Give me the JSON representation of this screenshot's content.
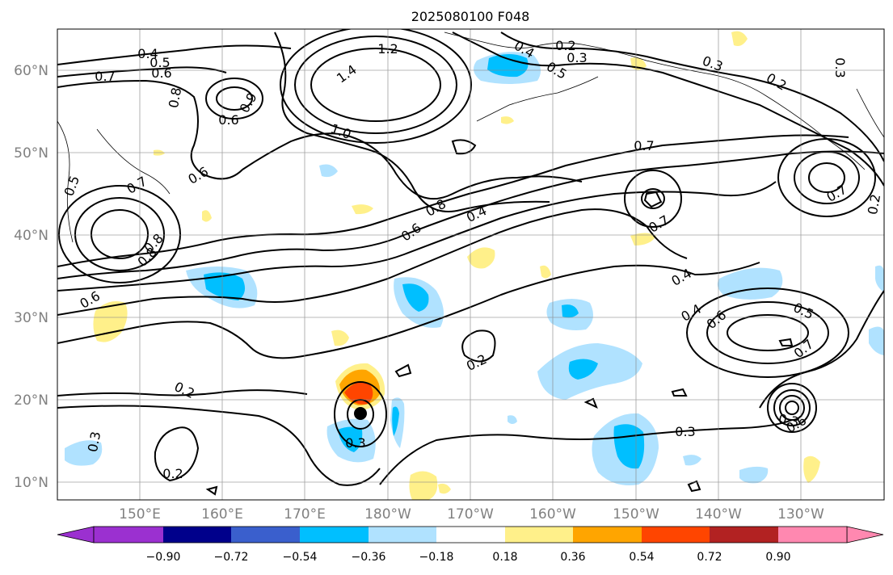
{
  "title": "2025080100 F048",
  "axes": {
    "lat_ticks": [
      "60°N",
      "50°N",
      "40°N",
      "30°N",
      "20°N",
      "10°N"
    ],
    "lon_ticks": [
      "150°E",
      "160°E",
      "170°E",
      "180°W",
      "170°W",
      "160°W",
      "150°W",
      "140°W",
      "130°W"
    ]
  },
  "colorbar": {
    "colors": [
      "#9b30d0",
      "#00008b",
      "#3a5fcd",
      "#00bfff",
      "#b0e2ff",
      "#ffffff",
      "#fff08a",
      "#ffa500",
      "#ff4500",
      "#b22222",
      "#ff88b0"
    ],
    "labels": [
      "−0.90",
      "−0.72",
      "−0.54",
      "−0.36",
      "−0.18",
      "0.18",
      "0.36",
      "0.54",
      "0.72",
      "0.90"
    ]
  },
  "contour_labels": [
    "0.4",
    "0.5",
    "0.6",
    "0.7",
    "0.8",
    "0.6",
    "0.9",
    "1.2",
    "1.4",
    "1.0",
    "0.2",
    "0.3",
    "0.4",
    "0.5",
    "0.3",
    "0.2",
    "0.3",
    "0.7",
    "0.6",
    "0.7",
    "0.8",
    "0.8",
    "0.8",
    "0.6",
    "0.6",
    "0.4",
    "0.7",
    "0.7",
    "0.2",
    "0.4",
    "0.4",
    "0.6",
    "0.5",
    "0.7",
    "0.2",
    "0.2",
    "0.3",
    "0.3",
    "0.2",
    "0.3",
    "0.6",
    "0.3",
    "0.5"
  ]
}
